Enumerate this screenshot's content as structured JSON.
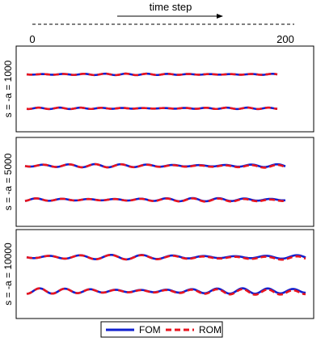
{
  "header": {
    "axis_label": "time step",
    "tick_start": "0",
    "tick_end": "200"
  },
  "legend": {
    "fom_label": "FOM",
    "rom_label": "ROM",
    "fom_color": "#1020d0",
    "rom_color": "#e8141e"
  },
  "chart_data": {
    "type": "line",
    "x_axis": {
      "label": "time step",
      "range": [
        0,
        200
      ],
      "ticks": [
        "0",
        "200"
      ]
    },
    "grid": false,
    "legend_position": "bottom-center",
    "panels": [
      {
        "label": "s = -a = 1000",
        "traces": [
          {
            "shape": "low-amplitude oscillation",
            "series": [
              "FOM",
              "ROM"
            ]
          },
          {
            "shape": "low-amplitude oscillation",
            "series": [
              "FOM",
              "ROM"
            ]
          }
        ],
        "series": [
          {
            "name": "FOM",
            "style": "solid",
            "color": "#1020d0"
          },
          {
            "name": "ROM",
            "style": "dashed",
            "color": "#e8141e"
          }
        ]
      },
      {
        "label": "s = -a = 5000",
        "traces": [
          {
            "shape": "medium-amplitude oscillation",
            "series": [
              "FOM",
              "ROM"
            ]
          },
          {
            "shape": "medium-amplitude oscillation",
            "series": [
              "FOM",
              "ROM"
            ]
          }
        ],
        "series": [
          {
            "name": "FOM",
            "style": "solid",
            "color": "#1020d0"
          },
          {
            "name": "ROM",
            "style": "dashed",
            "color": "#e8141e"
          }
        ]
      },
      {
        "label": "s = -a = 10000",
        "traces": [
          {
            "shape": "higher-amplitude oscillation",
            "series": [
              "FOM",
              "ROM"
            ]
          },
          {
            "shape": "higher-amplitude oscillation",
            "series": [
              "FOM",
              "ROM"
            ]
          }
        ],
        "series": [
          {
            "name": "FOM",
            "style": "solid",
            "color": "#1020d0"
          },
          {
            "name": "ROM",
            "style": "dashed",
            "color": "#e8141e"
          }
        ]
      }
    ]
  }
}
